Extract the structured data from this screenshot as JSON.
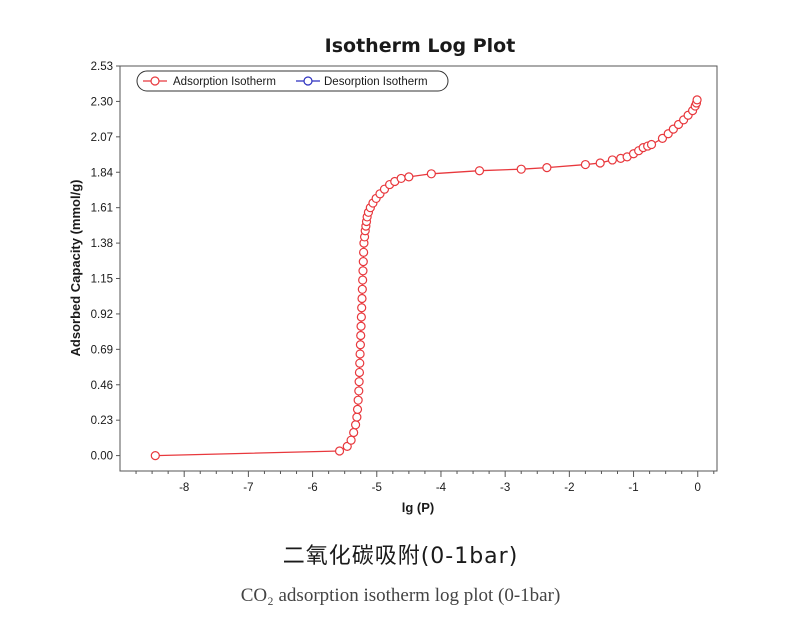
{
  "caption": {
    "title_cn": "二氧化碳吸附(0-1bar)",
    "subtitle_en": "CO₂ adsorption isotherm log plot (0-1bar)"
  },
  "chart_data": {
    "type": "line",
    "title": "Isotherm Log Plot",
    "xlabel": "lg (P)",
    "ylabel": "Adsorbed Capacity (mmol/g)",
    "xlim": [
      -9,
      0.3
    ],
    "ylim": [
      -0.1,
      2.53
    ],
    "xticks": [
      -8,
      -7,
      -6,
      -5,
      -4,
      -3,
      -2,
      -1,
      0
    ],
    "xtick_labels": [
      "-8",
      "-7",
      "-6",
      "-5",
      "-4",
      "-3",
      "-2",
      "-1",
      "0"
    ],
    "yticks": [
      0.0,
      0.23,
      0.46,
      0.69,
      0.92,
      1.15,
      1.38,
      1.61,
      1.84,
      2.07,
      2.3,
      2.53
    ],
    "ytick_labels": [
      "0.00",
      "0.23",
      "0.46",
      "0.69",
      "0.92",
      "1.15",
      "1.38",
      "1.61",
      "1.84",
      "2.07",
      "2.30",
      "2.53"
    ],
    "grid": false,
    "legend_position": "top-left",
    "series": [
      {
        "name": "Adsorption Isotherm",
        "color": "#e8383d",
        "marker": "open-circle",
        "x": [
          -8.45,
          -5.58,
          -5.46,
          -5.4,
          -5.36,
          -5.33,
          -5.31,
          -5.3,
          -5.29,
          -5.28,
          -5.275,
          -5.27,
          -5.265,
          -5.26,
          -5.255,
          -5.25,
          -5.245,
          -5.24,
          -5.235,
          -5.23,
          -5.225,
          -5.22,
          -5.215,
          -5.21,
          -5.205,
          -5.2,
          -5.19,
          -5.18,
          -5.17,
          -5.16,
          -5.15,
          -5.13,
          -5.1,
          -5.06,
          -5.01,
          -4.95,
          -4.88,
          -4.8,
          -4.72,
          -4.62,
          -4.5,
          -4.15,
          -3.4,
          -2.75,
          -2.35,
          -1.75,
          -1.52,
          -1.33,
          -1.2,
          -1.1,
          -1.0,
          -0.92,
          -0.85,
          -0.78,
          -0.72,
          -0.55,
          -0.46,
          -0.38,
          -0.3,
          -0.22,
          -0.15,
          -0.08,
          -0.04,
          -0.02,
          -0.01
        ],
        "y": [
          0.0,
          0.03,
          0.06,
          0.1,
          0.15,
          0.2,
          0.25,
          0.3,
          0.36,
          0.42,
          0.48,
          0.54,
          0.6,
          0.66,
          0.72,
          0.78,
          0.84,
          0.9,
          0.96,
          1.02,
          1.08,
          1.14,
          1.2,
          1.26,
          1.32,
          1.38,
          1.42,
          1.46,
          1.49,
          1.52,
          1.55,
          1.58,
          1.61,
          1.64,
          1.67,
          1.7,
          1.73,
          1.76,
          1.78,
          1.8,
          1.81,
          1.83,
          1.85,
          1.86,
          1.87,
          1.89,
          1.9,
          1.92,
          1.93,
          1.94,
          1.96,
          1.98,
          2.0,
          2.01,
          2.02,
          2.06,
          2.09,
          2.12,
          2.15,
          2.18,
          2.21,
          2.24,
          2.27,
          2.29,
          2.31
        ]
      },
      {
        "name": "Desorption Isotherm",
        "color": "#2b2fbf",
        "marker": "open-circle",
        "x": [],
        "y": []
      }
    ]
  }
}
